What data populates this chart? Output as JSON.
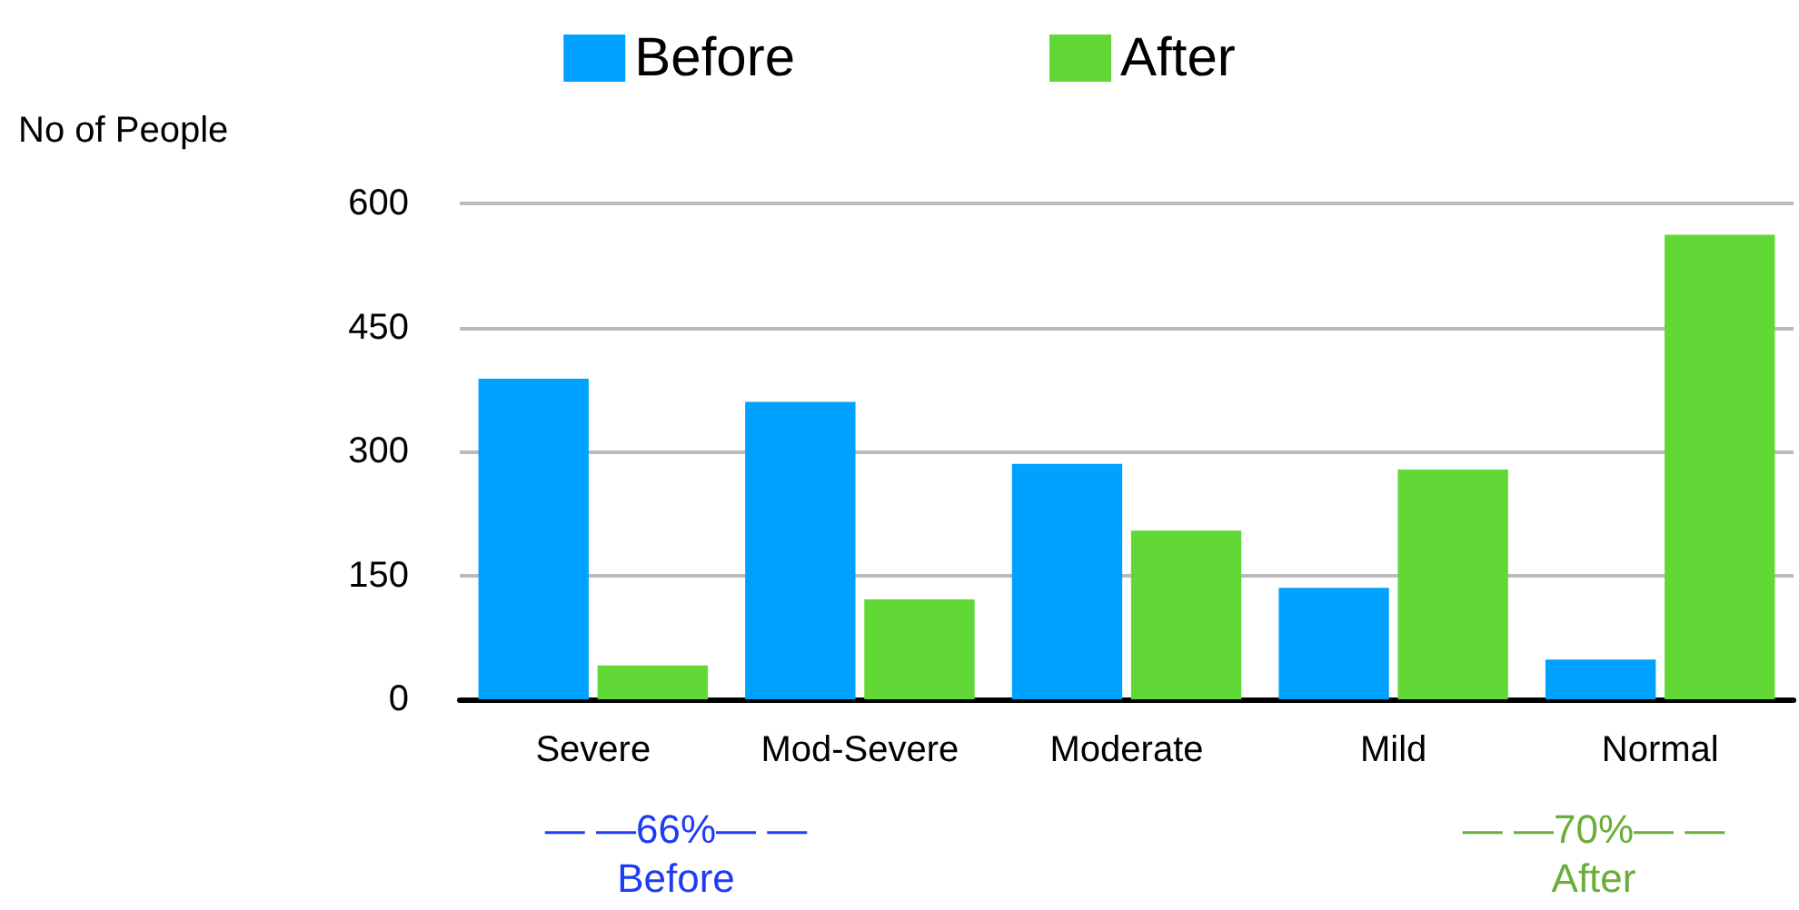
{
  "chart_data": {
    "type": "bar",
    "ylabel": "No of People",
    "categories": [
      "Severe",
      "Mod-Severe",
      "Moderate",
      "Mild",
      "Normal"
    ],
    "series": [
      {
        "name": "Before",
        "color": "#00a2ff",
        "values": [
          388,
          360,
          285,
          135,
          48
        ]
      },
      {
        "name": "After",
        "color": "#61d836",
        "values": [
          41,
          121,
          204,
          278,
          562
        ]
      }
    ],
    "ylim": [
      0,
      600
    ],
    "yticks": [
      0,
      150,
      300,
      450,
      600
    ],
    "grid": "y",
    "legend": "top",
    "annotations": [
      "— —66%— —\nBefore",
      "— —70%— —\nAfter"
    ]
  }
}
